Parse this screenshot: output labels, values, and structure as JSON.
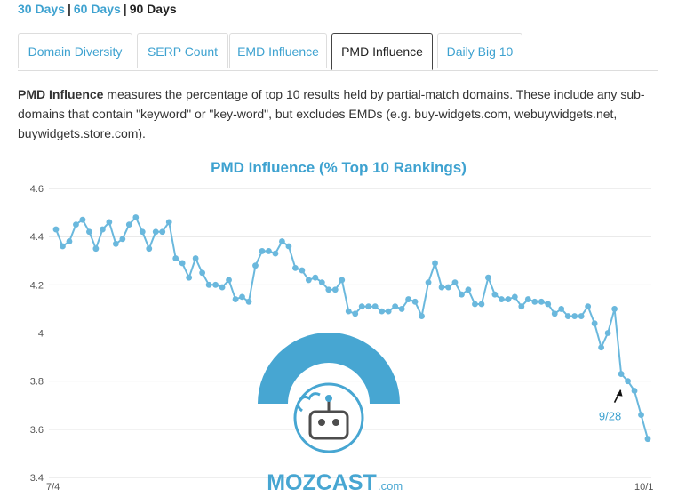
{
  "range": {
    "d30": "30 Days",
    "d60": "60 Days",
    "d90": "90 Days",
    "sep": "|"
  },
  "tabs": [
    "Domain Diversity",
    "SERP Count",
    "EMD Influence",
    "PMD Influence",
    "Daily Big 10"
  ],
  "active_tab": "PMD Influence",
  "description": {
    "bold": "PMD Influence",
    "text": " measures the percentage of top 10 results held by partial-match domains. These include any sub-domains that contain \"keyword\" or \"key-word\", but excludes EMDs (e.g. buy-widgets.com, webuywidgets.net, buywidgets.store.com)."
  },
  "watermark": {
    "brand": "MOZCAST",
    "suffix": ".com"
  },
  "colors": {
    "accent": "#3ea2d0",
    "line": "#6ab8dd",
    "grid": "#dddddd"
  },
  "chart_data": {
    "type": "line",
    "title": "PMD Influence (% Top 10 Rankings)",
    "xlabel": "",
    "ylabel": "",
    "ylim": [
      3.4,
      4.6
    ],
    "yticks": [
      "3.4",
      "3.6",
      "3.8",
      "4",
      "4.2",
      "4.4",
      "4.6"
    ],
    "x_start_label": "7/4",
    "x_end_label": "10/1",
    "grid": true,
    "legend": "none",
    "annotation": {
      "label": "9/28",
      "point_index": 86
    },
    "values": [
      4.43,
      4.36,
      4.38,
      4.45,
      4.47,
      4.42,
      4.35,
      4.43,
      4.46,
      4.37,
      4.39,
      4.45,
      4.48,
      4.42,
      4.35,
      4.42,
      4.42,
      4.46,
      4.31,
      4.29,
      4.23,
      4.31,
      4.25,
      4.2,
      4.2,
      4.19,
      4.22,
      4.14,
      4.15,
      4.13,
      4.28,
      4.34,
      4.34,
      4.33,
      4.38,
      4.36,
      4.27,
      4.26,
      4.22,
      4.23,
      4.21,
      4.18,
      4.18,
      4.22,
      4.09,
      4.08,
      4.11,
      4.11,
      4.11,
      4.09,
      4.09,
      4.11,
      4.1,
      4.14,
      4.13,
      4.07,
      4.21,
      4.29,
      4.19,
      4.19,
      4.21,
      4.16,
      4.18,
      4.12,
      4.12,
      4.23,
      4.16,
      4.14,
      4.14,
      4.15,
      4.11,
      4.14,
      4.13,
      4.13,
      4.12,
      4.08,
      4.1,
      4.07,
      4.07,
      4.07,
      4.11,
      4.04,
      3.94,
      4.0,
      4.1,
      3.83,
      3.8,
      3.76,
      3.66,
      3.56
    ]
  }
}
